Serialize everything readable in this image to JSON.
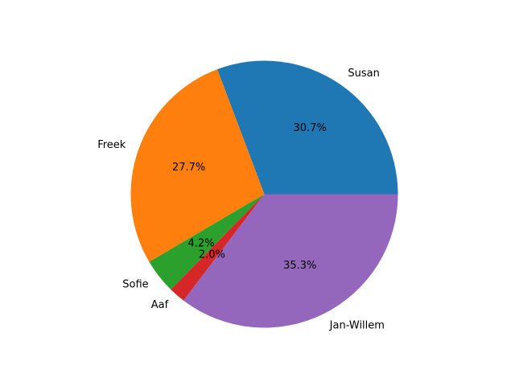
{
  "chart_data": {
    "type": "pie",
    "title": "",
    "start_angle_deg": 0,
    "direction": "counterclockwise",
    "slices": [
      {
        "label": "Susan",
        "value": 30.7,
        "pct_label": "30.7%",
        "color": "#1f77b4"
      },
      {
        "label": "Freek",
        "value": 27.7,
        "pct_label": "27.7%",
        "color": "#ff7f0e"
      },
      {
        "label": "Sofie",
        "value": 4.2,
        "pct_label": "4.2%",
        "color": "#2ca02c"
      },
      {
        "label": "Aaf",
        "value": 2.0,
        "pct_label": "2.0%",
        "color": "#d62728"
      },
      {
        "label": "Jan-Willem",
        "value": 35.3,
        "pct_label": "35.3%",
        "color": "#9467bd"
      }
    ]
  }
}
